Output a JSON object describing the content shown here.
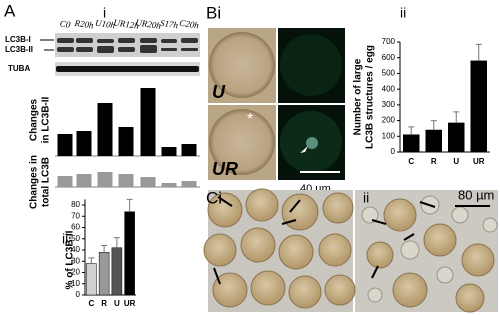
{
  "figure": {
    "panels": {
      "a": "A",
      "ai": "i",
      "aii": "ii",
      "bi": "Bi",
      "bii": "ii",
      "ci": "Ci",
      "cii": "ii"
    },
    "blot": {
      "band1": "LC3B-I",
      "band2": "LC3B-II",
      "loading": "TUBA"
    },
    "images": {
      "u": "U",
      "ur": "UR",
      "star": "*",
      "scale_b": "40 µm",
      "scale_c": "80 µm"
    }
  },
  "chart_data": [
    {
      "type": "bar",
      "ylabel": [
        "Changes",
        "in LC3B-II"
      ],
      "categories": [
        "C0",
        "R20h",
        "U10h",
        "UR12h",
        "UR20h",
        "S17h",
        "C20h"
      ],
      "values": [
        22,
        25,
        53,
        29,
        68,
        9,
        12
      ],
      "color": "#000000",
      "ylim": [
        0,
        70
      ]
    },
    {
      "type": "bar",
      "ylabel": [
        "Changes in",
        "total LC3B"
      ],
      "values": [
        11,
        13,
        15,
        13,
        10,
        4,
        6
      ],
      "color": "#999999",
      "ylim": [
        0,
        20
      ]
    },
    {
      "type": "bar",
      "ylabel": [
        "% of LC3B-II"
      ],
      "categories": [
        "C",
        "R",
        "U",
        "UR"
      ],
      "values": [
        28,
        38,
        42,
        74
      ],
      "errors": [
        5,
        6,
        9,
        11
      ],
      "colors": [
        "#d0d0d0",
        "#999999",
        "#555555",
        "#000000"
      ],
      "ylim": [
        0,
        85
      ],
      "yticks": [
        0,
        10,
        20,
        30,
        40,
        50,
        60,
        70,
        80
      ]
    },
    {
      "type": "bar",
      "ylabel": [
        "Number of large",
        "LC3B structures / egg"
      ],
      "categories": [
        "C",
        "R",
        "U",
        "UR"
      ],
      "values": [
        110,
        140,
        185,
        580
      ],
      "errors": [
        50,
        60,
        70,
        105
      ],
      "color": "#000000",
      "ylim": [
        0,
        700
      ],
      "yticks": [
        0,
        100,
        200,
        300,
        400,
        500,
        600,
        700
      ]
    }
  ]
}
